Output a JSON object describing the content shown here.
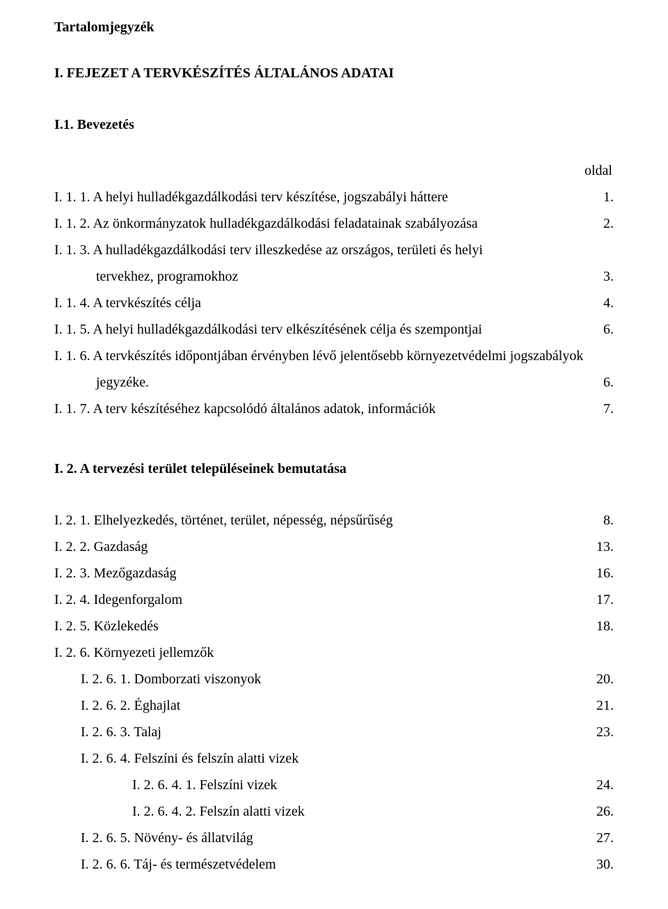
{
  "toc_title": "Tartalomjegyzék",
  "chapter1_title": "I. FEJEZET A TERVKÉSZÍTÉS ÁLTALÁNOS ADATAI",
  "section_i1_title": "I.1. Bevezetés",
  "oldal_label": "oldal",
  "i1": {
    "r1": {
      "label": "I. 1. 1. A helyi hulladékgazdálkodási terv készítése, jogszabályi háttere",
      "page": "1."
    },
    "r2": {
      "label": "I. 1. 2. Az önkormányzatok hulladékgazdálkodási feladatainak szabályozása",
      "page": "2."
    },
    "r3a": {
      "label": "I. 1. 3. A hulladékgazdálkodási terv illeszkedése az országos, területi és helyi"
    },
    "r3b": {
      "label": "tervekhez, programokhoz",
      "page": "3."
    },
    "r4": {
      "label": "I. 1. 4. A tervkészítés célja",
      "page": "4."
    },
    "r5": {
      "label": "I. 1. 5. A helyi hulladékgazdálkodási terv elkészítésének célja és szempontjai",
      "page": "6."
    },
    "r6a": {
      "label": "I. 1. 6. A tervkészítés időpontjában érvényben lévő jelentősebb környezetvédelmi jogszabályok"
    },
    "r6b": {
      "label": "jegyzéke.",
      "page": "6."
    },
    "r7": {
      "label": "I. 1. 7. A terv készítéséhez kapcsolódó általános adatok, információk",
      "page": "7."
    }
  },
  "section_i2_title": "I. 2. A tervezési terület településeinek bemutatása",
  "i2": {
    "r1": {
      "label": "I. 2. 1. Elhelyezkedés, történet, terület, népesség, népsűrűség",
      "page": "8."
    },
    "r2": {
      "label": "I. 2. 2. Gazdaság",
      "page": "13."
    },
    "r3": {
      "label": "I. 2. 3. Mezőgazdaság",
      "page": "16."
    },
    "r4": {
      "label": "I. 2. 4. Idegenforgalom",
      "page": "17."
    },
    "r5": {
      "label": "I. 2. 5. Közlekedés",
      "page": "18."
    },
    "r6": {
      "label": "I. 2. 6.  Környezeti jellemzők"
    },
    "r6_1": {
      "label": "I. 2. 6. 1. Domborzati viszonyok",
      "page": "20."
    },
    "r6_2": {
      "label": "I. 2. 6. 2. Éghajlat",
      "page": "21."
    },
    "r6_3": {
      "label": "I. 2. 6. 3. Talaj",
      "page": "23."
    },
    "r6_4": {
      "label": "I. 2. 6. 4. Felszíni és felszín alatti vizek"
    },
    "r6_4_1": {
      "label": "I. 2. 6. 4. 1. Felszíni vizek",
      "page": "24."
    },
    "r6_4_2": {
      "label": "I. 2. 6. 4. 2. Felszín alatti vizek",
      "page": "26."
    },
    "r6_5": {
      "label": "I. 2. 6. 5. Növény- és állatvilág",
      "page": "27."
    },
    "r6_6": {
      "label": "I. 2. 6. 6. Táj- és természetvédelem",
      "page": "30."
    }
  }
}
